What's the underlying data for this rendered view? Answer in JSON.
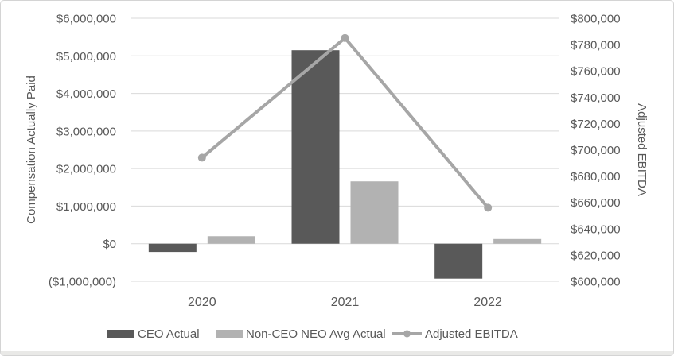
{
  "chart_data": {
    "type": "combo-bar-line",
    "categories": [
      "2020",
      "2021",
      "2022"
    ],
    "bar_series": [
      {
        "name": "CEO Actual",
        "color": "#595959",
        "values": [
          -220000,
          5150000,
          -930000
        ]
      },
      {
        "name": "Non-CEO NEO Avg Actual",
        "color": "#b2b2b2",
        "values": [
          200000,
          1660000,
          125000
        ]
      }
    ],
    "line_series": {
      "name": "Adjusted EBITDA",
      "color": "#a6a6a6",
      "axis": "right",
      "values": [
        694000,
        785000,
        656000
      ]
    },
    "left_axis": {
      "title": "Compensation Actually Paid",
      "min": -1000000,
      "max": 6000000,
      "step": 1000000,
      "tick_labels": [
        "$6,000,000",
        "$5,000,000",
        "$4,000,000",
        "$3,000,000",
        "$2,000,000",
        "$1,000,000",
        "$0",
        "($1,000,000)"
      ]
    },
    "right_axis": {
      "title": "Adjusted EBITDA",
      "min": 600000,
      "max": 800000,
      "step": 20000,
      "tick_labels": [
        "$800,000",
        "$780,000",
        "$760,000",
        "$740,000",
        "$720,000",
        "$700,000",
        "$680,000",
        "$660,000",
        "$640,000",
        "$620,000",
        "$600,000"
      ]
    },
    "legend": [
      {
        "label": "CEO Actual",
        "type": "bar",
        "color": "#595959"
      },
      {
        "label": "Non-CEO NEO Avg Actual",
        "type": "bar",
        "color": "#b2b2b2"
      },
      {
        "label": "Adjusted EBITDA",
        "type": "line",
        "color": "#a6a6a6"
      }
    ],
    "grid": {
      "show": true,
      "color": "#d9d9d9"
    },
    "legend_position": "bottom",
    "text_color": "#595959"
  }
}
